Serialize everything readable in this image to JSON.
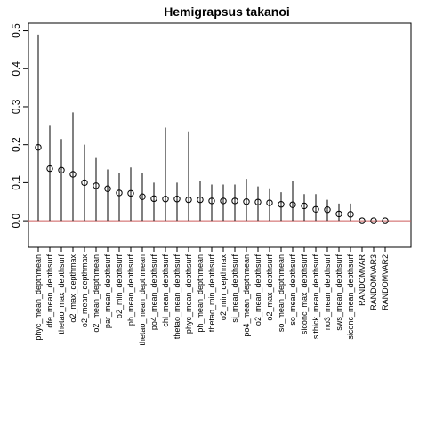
{
  "chart_data": {
    "type": "scatter",
    "title": "Hemigrapsus takanoi",
    "xlabel": "",
    "ylabel": "",
    "ylim": [
      -0.07,
      0.52
    ],
    "yticks": [
      "0.0",
      "0.1",
      "0.2",
      "0.3",
      "0.4",
      "0.5"
    ],
    "ytick_values": [
      0,
      0.1,
      0.2,
      0.3,
      0.4,
      0.5
    ],
    "grid": false,
    "reference_line": {
      "y": 0,
      "color": "#cd5c5c"
    },
    "colors": {
      "point": "#000000",
      "whisker": "#000000",
      "reference": "#cd5c5c",
      "frame": "#000000"
    },
    "categories": [
      "phyc_mean_depthmean",
      "dfe_mean_depthsurf",
      "thetao_max_depthsurf",
      "o2_max_depthmax",
      "o2_mean_depthmax",
      "o2_mean_depthmean",
      "par_mean_depthsurf",
      "o2_min_depthsurf",
      "ph_mean_depthsurf",
      "thetao_mean_depthmean",
      "po4_mean_depthsurf",
      "chl_mean_depthsurf",
      "thetao_mean_depthsurf",
      "phyc_mean_depthsurf",
      "ph_mean_depthmean",
      "thetao_min_depthsurf",
      "o2_min_depthmax",
      "si_mean_depthsurf",
      "po4_mean_depthmean",
      "o2_mean_depthsurf",
      "o2_max_depthsurf",
      "so_mean_depthmean",
      "so_mean_depthsurf",
      "siconc_max_depthsurf",
      "sithick_mean_depthsurf",
      "no3_mean_depthsurf",
      "sws_mean_depthsurf",
      "siconc_mean_depthsurf",
      "RANDOMVAR",
      "RANDOMVAR3",
      "RANDOMVAR2"
    ],
    "values": [
      0.193,
      0.137,
      0.133,
      0.122,
      0.1,
      0.092,
      0.084,
      0.073,
      0.072,
      0.063,
      0.058,
      0.057,
      0.057,
      0.055,
      0.055,
      0.052,
      0.052,
      0.052,
      0.05,
      0.049,
      0.047,
      0.043,
      0.042,
      0.039,
      0.03,
      0.029,
      0.018,
      0.017,
      0.0,
      0.0,
      0.0
    ],
    "upper": [
      0.49,
      0.25,
      0.215,
      0.285,
      0.2,
      0.165,
      0.135,
      0.125,
      0.14,
      0.125,
      0.1,
      0.245,
      0.1,
      0.235,
      0.105,
      0.095,
      0.095,
      0.095,
      0.11,
      0.09,
      0.085,
      0.075,
      0.105,
      0.07,
      0.07,
      0.055,
      0.045,
      0.045,
      0.0,
      0.0,
      0.0
    ]
  }
}
